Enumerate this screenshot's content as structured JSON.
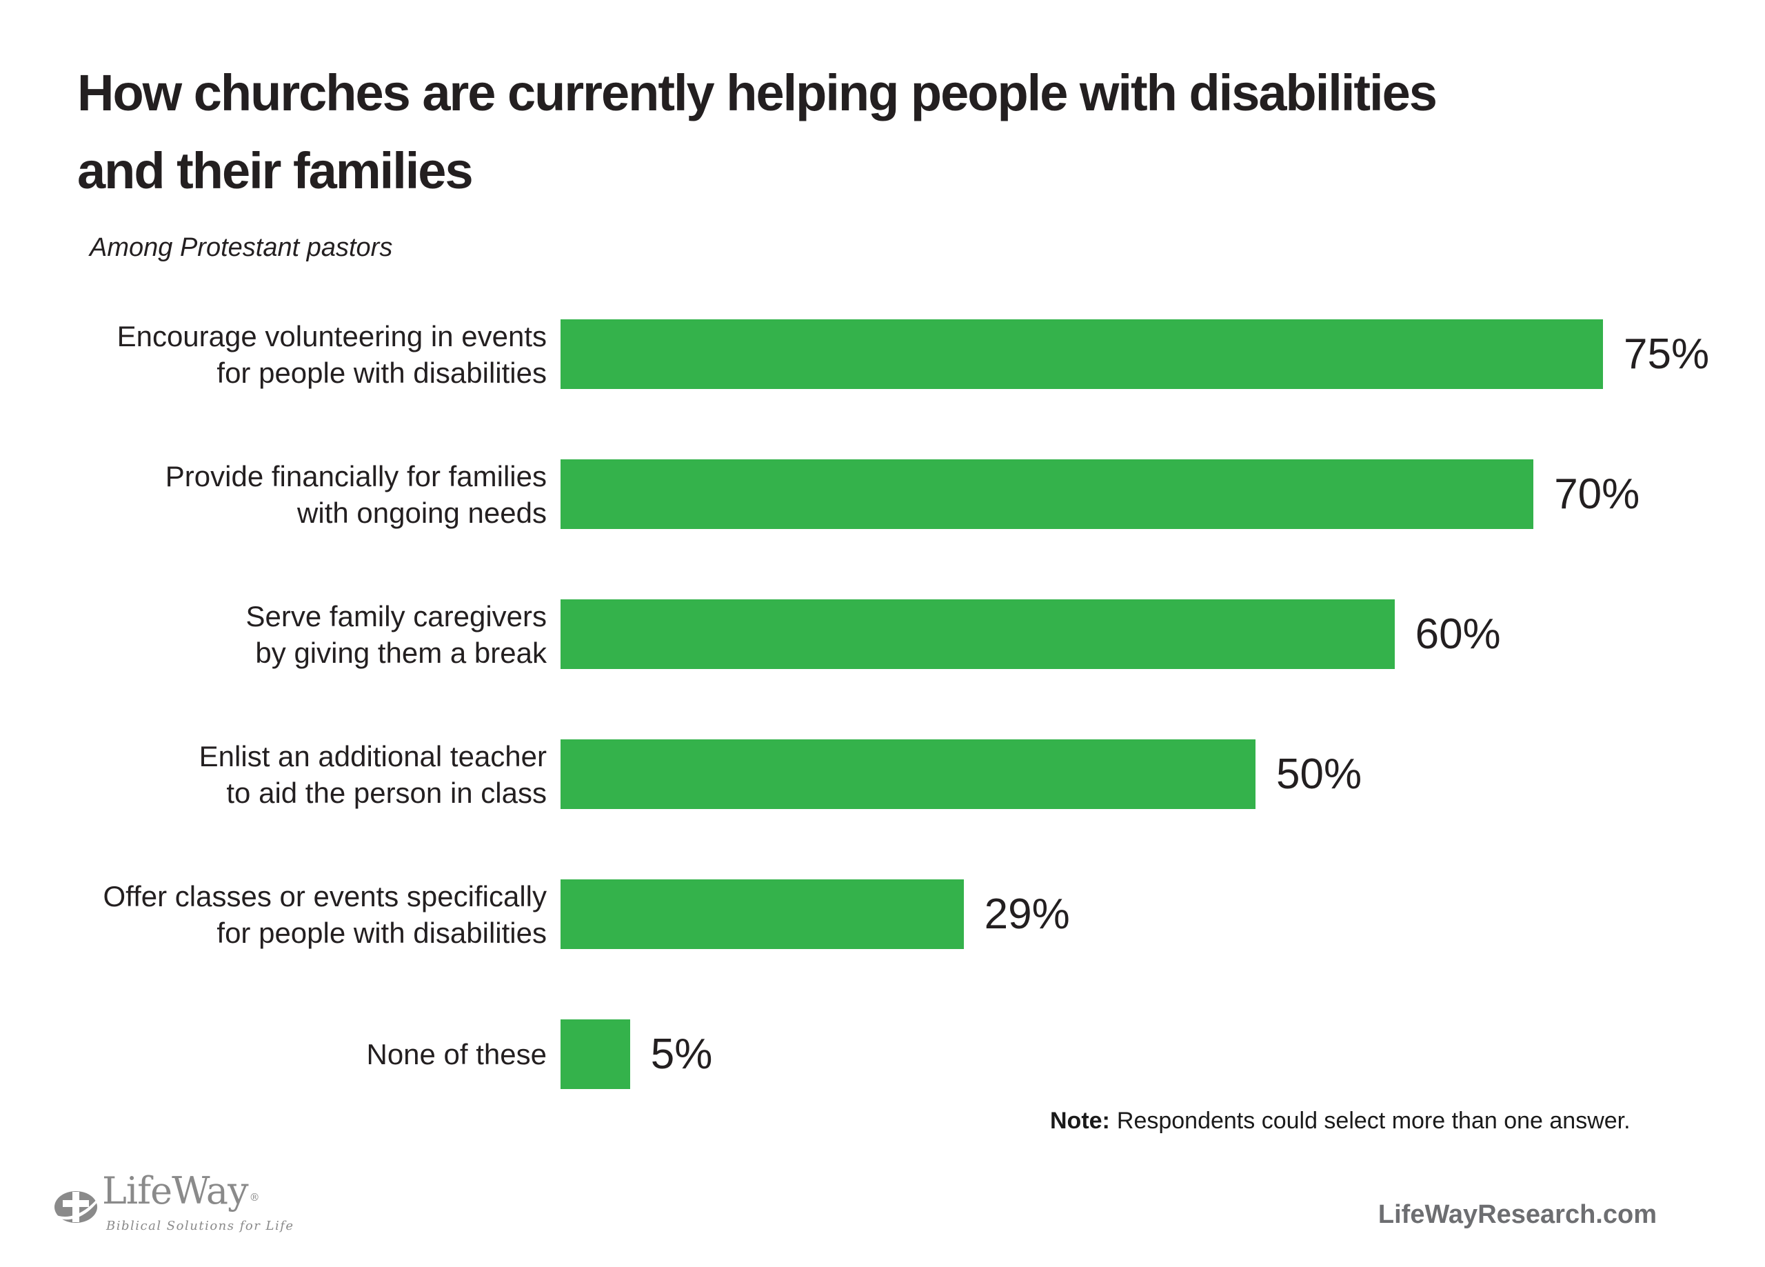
{
  "page": {
    "title_line1": "How churches are currently helping people with disabilities",
    "title_line2": "and their families",
    "subtitle": "Among Protestant pastors"
  },
  "note": {
    "label": "Note:",
    "text": "Respondents could select more than one answer."
  },
  "footer": {
    "logo_name": "LifeWay",
    "logo_registered": "®",
    "logo_tagline": "Biblical Solutions for Life",
    "website": "LifeWayResearch.com"
  },
  "colors": {
    "bar_green": "#34b24b",
    "text_dark": "#231f20",
    "logo_gray": "#8a8a8a",
    "footer_gray": "#6d6e71"
  },
  "chart_data": {
    "type": "bar",
    "orientation": "horizontal",
    "title": "How churches are currently helping people with disabilities and their families",
    "population": "Among Protestant pastors",
    "unit": "%",
    "value_axis_max": 100,
    "grid": false,
    "legend": false,
    "categories": [
      "Encourage volunteering in events for people with disabilities",
      "Provide financially for families with ongoing needs",
      "Serve family caregivers by giving them a break",
      "Enlist an additional teacher to aid the person in class",
      "Offer classes or events specifically for people with disabilities",
      "None of these"
    ],
    "values": [
      75,
      70,
      60,
      50,
      29,
      5
    ],
    "rows": [
      {
        "lines": [
          "Encourage volunteering in events",
          "for people with disabilities"
        ],
        "value": 75,
        "display": "75%"
      },
      {
        "lines": [
          "Provide financially for families",
          "with ongoing needs"
        ],
        "value": 70,
        "display": "70%"
      },
      {
        "lines": [
          "Serve family caregivers",
          "by giving them a break"
        ],
        "value": 60,
        "display": "60%"
      },
      {
        "lines": [
          "Enlist an additional teacher",
          "to aid the person in class"
        ],
        "value": 50,
        "display": "50%"
      },
      {
        "lines": [
          "Offer classes or events specifically",
          "for people with disabilities"
        ],
        "value": 29,
        "display": "29%"
      },
      {
        "lines": [
          "None of these"
        ],
        "value": 5,
        "display": "5%"
      }
    ],
    "note": "Note: Respondents could select more than one answer.",
    "source": "LifeWayResearch.com"
  }
}
